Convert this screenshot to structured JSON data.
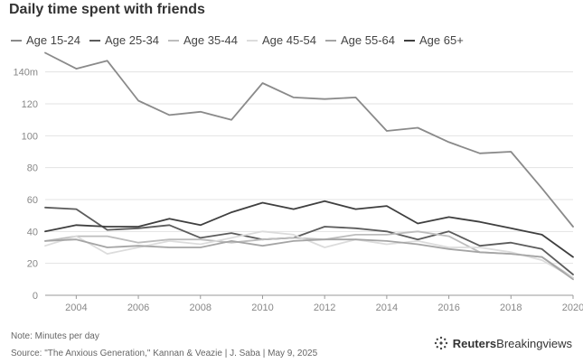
{
  "title": "Daily time spent with friends",
  "note": "Note: Minutes per day",
  "source": "Source: \"The Anxious Generation,\" Kannan & Veazie | J. Saba | May 9, 2025",
  "brand": {
    "strong": "Reuters",
    "light": "Breakingviews",
    "icon": "reuters-dots-logo-icon"
  },
  "chart_data": {
    "type": "line",
    "title": "Daily time spent with friends",
    "xlabel": "",
    "ylabel": "",
    "x": [
      2003,
      2004,
      2005,
      2006,
      2007,
      2008,
      2009,
      2010,
      2011,
      2012,
      2013,
      2014,
      2015,
      2016,
      2017,
      2018,
      2019,
      2020
    ],
    "xticks": [
      "2004",
      "2006",
      "2008",
      "2010",
      "2012",
      "2014",
      "2016",
      "2018",
      "2020"
    ],
    "yticks": [
      "0",
      "20",
      "40",
      "60",
      "80",
      "100",
      "120",
      "140m"
    ],
    "ylim": [
      0,
      150
    ],
    "grid": true,
    "legend_position": "top",
    "series": [
      {
        "name": "Age 15-24",
        "color": "#8a8a8a",
        "values": [
          152,
          142,
          147,
          122,
          113,
          115,
          110,
          133,
          124,
          123,
          124,
          103,
          105,
          96,
          89,
          90,
          67,
          43
        ]
      },
      {
        "name": "Age 25-34",
        "color": "#5c5c5c",
        "values": [
          55,
          54,
          41,
          42,
          44,
          36,
          39,
          35,
          36,
          43,
          42,
          40,
          35,
          40,
          31,
          33,
          29,
          13
        ]
      },
      {
        "name": "Age 35-44",
        "color": "#bdbdbd",
        "values": [
          34,
          37,
          37,
          33,
          35,
          35,
          33,
          35,
          36,
          35,
          38,
          38,
          40,
          37,
          27,
          26,
          24,
          11
        ]
      },
      {
        "name": "Age 45-54",
        "color": "#dcdcdc",
        "values": [
          31,
          37,
          26,
          30,
          34,
          32,
          36,
          40,
          38,
          30,
          35,
          32,
          34,
          30,
          30,
          27,
          22,
          11
        ]
      },
      {
        "name": "Age 55-64",
        "color": "#a5a5a5",
        "values": [
          34,
          35,
          30,
          31,
          30,
          30,
          34,
          31,
          34,
          35,
          35,
          34,
          32,
          29,
          27,
          26,
          24,
          10
        ]
      },
      {
        "name": "Age 65+",
        "color": "#3f3f3f",
        "values": [
          40,
          44,
          43,
          43,
          48,
          44,
          52,
          58,
          54,
          59,
          54,
          56,
          45,
          49,
          46,
          42,
          38,
          24
        ]
      }
    ]
  }
}
